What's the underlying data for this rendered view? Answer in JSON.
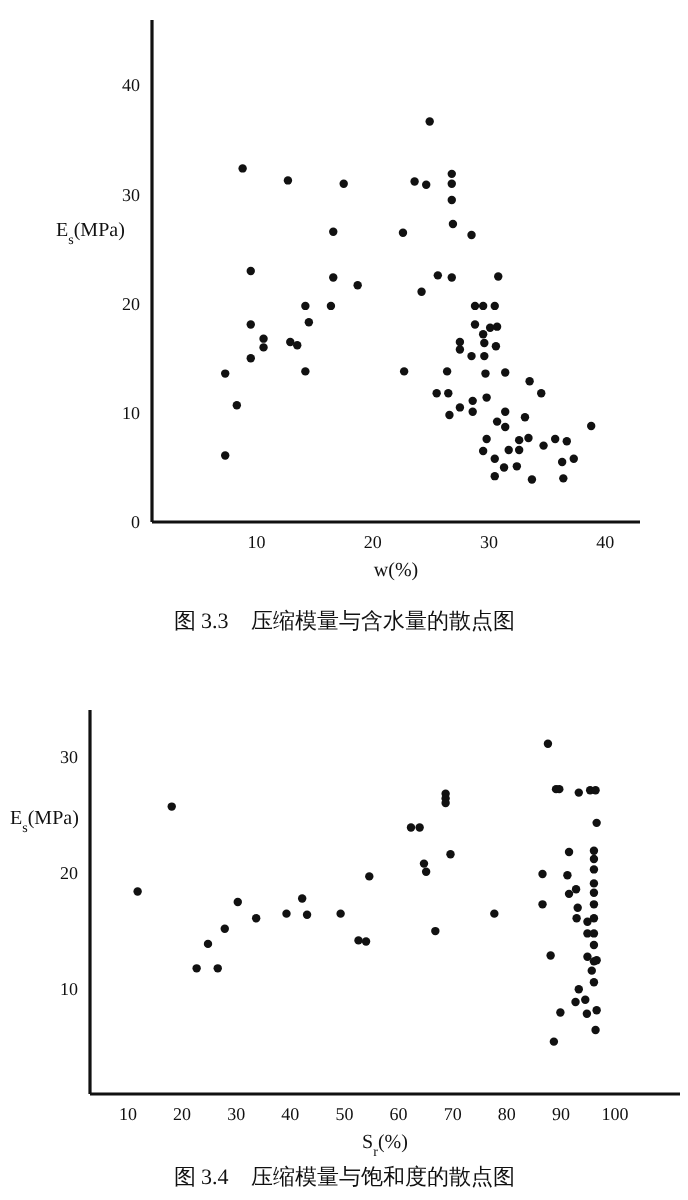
{
  "chart_data": [
    {
      "type": "scatter",
      "title": "图 3.3　压缩模量与含水量的散点图",
      "xlabel": "w(%)",
      "ylabel": "E$_{s}$(MPa)",
      "marker": "circle",
      "xlim": [
        1,
        43
      ],
      "ylim": [
        0,
        46
      ],
      "xticks": [
        10,
        20,
        30,
        40
      ],
      "yticks": [
        0,
        10,
        20,
        30,
        40
      ],
      "series": [
        {
          "color": "#111111",
          "x": [
            7.3,
            7.3,
            8.3,
            8.8,
            9.5,
            9.5,
            9.5,
            10.6,
            10.6,
            12.7,
            12.9,
            13.5,
            14.2,
            14.2,
            14.5,
            16.4,
            16.6,
            16.6,
            17.5,
            18.7,
            22.6,
            22.7,
            23.6,
            24.2,
            24.6,
            24.9,
            25.6,
            25.5,
            26.4,
            26.5,
            26.6,
            26.8,
            26.8,
            26.8,
            26.8,
            26.9,
            27.5,
            27.5,
            27.5,
            28.5,
            28.5,
            28.6,
            28.6,
            28.8,
            28.8,
            29.5,
            29.5,
            29.6,
            29.6,
            29.7,
            29.8,
            29.8,
            29.5,
            30.1,
            30.5,
            30.5,
            30.5,
            30.6,
            30.7,
            30.8,
            30.7,
            31.4,
            31.4,
            31.4,
            31.3,
            31.7,
            32.4,
            32.6,
            32.6,
            33.1,
            33.4,
            33.5,
            33.7,
            34.5,
            34.7,
            35.7,
            36.3,
            36.4,
            36.7,
            37.3,
            38.8
          ],
          "values": [
            6.1,
            13.6,
            10.7,
            32.4,
            23,
            18.1,
            15,
            16.8,
            16,
            31.3,
            16.5,
            16.2,
            19.8,
            13.8,
            18.3,
            19.8,
            26.6,
            22.4,
            31,
            21.7,
            26.5,
            13.8,
            31.2,
            21.1,
            30.9,
            36.7,
            22.6,
            11.8,
            13.8,
            11.8,
            9.8,
            22.4,
            31.9,
            31,
            29.5,
            27.3,
            10.5,
            16.5,
            15.8,
            26.3,
            15.2,
            11.1,
            10.1,
            19.8,
            18.1,
            19.8,
            17.2,
            16.4,
            15.2,
            13.6,
            11.4,
            7.6,
            6.5,
            17.8,
            19.8,
            5.8,
            4.2,
            16.1,
            17.9,
            22.5,
            9.2,
            13.7,
            10.1,
            8.7,
            5,
            6.6,
            5.1,
            7.5,
            6.6,
            9.6,
            7.7,
            12.9,
            3.9,
            11.8,
            7,
            7.6,
            5.5,
            4,
            7.4,
            5.8,
            8.8
          ]
        }
      ]
    },
    {
      "type": "scatter",
      "title": "图 3.4　压缩模量与饱和度的散点图",
      "xlabel": "S$_{r}$(%)",
      "ylabel": "E$_{s}$(MPa)",
      "marker": "circle",
      "xlim": [
        3,
        112
      ],
      "ylim": [
        1,
        34
      ],
      "xticks": [
        10,
        20,
        30,
        40,
        50,
        60,
        70,
        80,
        90,
        100
      ],
      "yticks": [
        10,
        20,
        30
      ],
      "series": [
        {
          "color": "#111111",
          "x": [
            11.8,
            18.1,
            22.7,
            24.8,
            26.6,
            27.9,
            30.3,
            33.7,
            39.3,
            42.2,
            43.1,
            49.3,
            52.6,
            54,
            54.6,
            62.3,
            63.9,
            64.7,
            65.1,
            66.8,
            68.7,
            68.7,
            68.7,
            69.6,
            77.7,
            86.6,
            86.6,
            87.6,
            88.1,
            88.7,
            89.1,
            89.7,
            89.9,
            91.5,
            91.2,
            91.5,
            92.8,
            93.1,
            93.3,
            93.3,
            92.7,
            92.9,
            94.5,
            94.9,
            94.9,
            94.9,
            94.8,
            95.4,
            96.4,
            96.6,
            96.1,
            96.1,
            96.1,
            96.1,
            96.1,
            96.1,
            96.1,
            96.1,
            96.1,
            96.1,
            96.6,
            95.7,
            96.1,
            96.6,
            96.4
          ],
          "values": [
            18.4,
            25.7,
            11.8,
            13.9,
            11.8,
            15.2,
            17.5,
            16.1,
            16.5,
            17.8,
            16.4,
            16.5,
            14.2,
            14.1,
            19.7,
            23.9,
            23.9,
            20.8,
            20.1,
            15,
            26.8,
            26.4,
            26,
            21.6,
            16.5,
            19.9,
            17.3,
            31.1,
            12.9,
            5.5,
            27.2,
            27.2,
            8,
            21.8,
            19.8,
            18.2,
            18.6,
            17,
            26.9,
            10,
            8.9,
            16.1,
            9.1,
            15.8,
            14.8,
            12.8,
            7.9,
            27.1,
            27.1,
            24.3,
            21.9,
            21.2,
            20.3,
            19.1,
            18.3,
            17.3,
            16.1,
            14.8,
            13.8,
            12.4,
            12.5,
            11.6,
            10.6,
            8.2,
            6.5
          ]
        }
      ]
    }
  ]
}
